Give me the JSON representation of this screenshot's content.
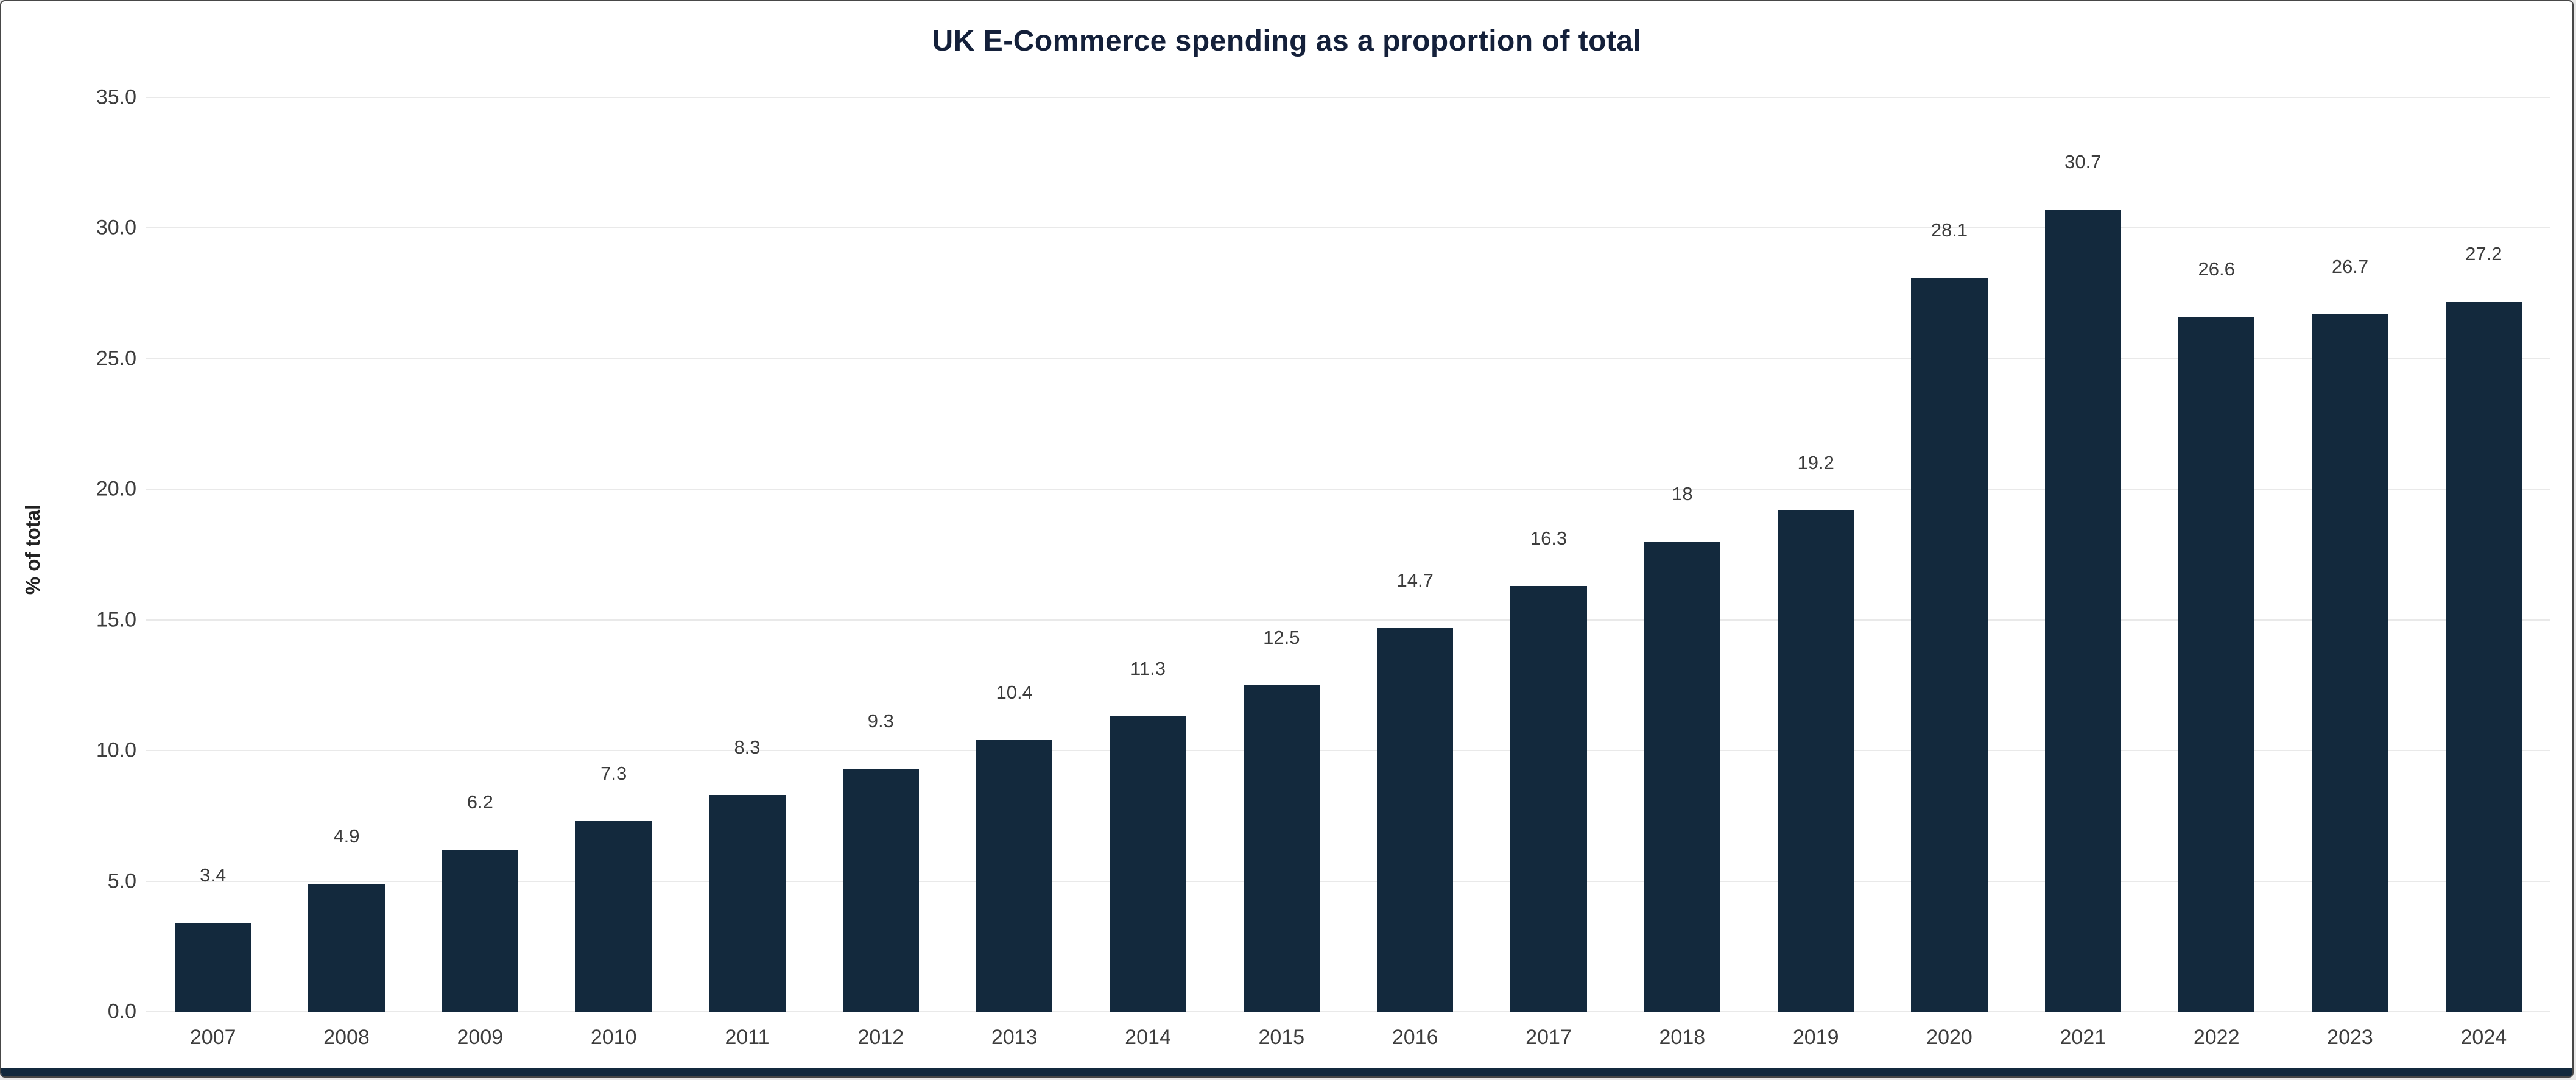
{
  "chart_data": {
    "type": "bar",
    "title": "UK E-Commerce spending as a proportion of total",
    "xlabel": "",
    "ylabel": "% of total",
    "categories": [
      "2007",
      "2008",
      "2009",
      "2010",
      "2011",
      "2012",
      "2013",
      "2014",
      "2015",
      "2016",
      "2017",
      "2018",
      "2019",
      "2020",
      "2021",
      "2022",
      "2023",
      "2024"
    ],
    "values": [
      3.4,
      4.9,
      6.2,
      7.3,
      8.3,
      9.3,
      10.4,
      11.3,
      12.5,
      14.7,
      16.3,
      18,
      19.2,
      28.1,
      30.7,
      26.6,
      26.7,
      27.2
    ],
    "value_labels": [
      "3.4",
      "4.9",
      "6.2",
      "7.3",
      "8.3",
      "9.3",
      "10.4",
      "11.3",
      "12.5",
      "14.7",
      "16.3",
      "18",
      "19.2",
      "28.1",
      "30.7",
      "26.6",
      "26.7",
      "27.2"
    ],
    "ylim": [
      0,
      35
    ],
    "ytick_step": 5,
    "ytick_labels": [
      "0.0",
      "5.0",
      "10.0",
      "15.0",
      "20.0",
      "25.0",
      "30.0",
      "35.0"
    ],
    "grid": true,
    "legend_position": "none",
    "colors": {
      "bar": "#13293d",
      "grid": "#e9e9e9",
      "title": "#14203a",
      "tick_label": "#3d3d3d",
      "value_label": "#3d3d3d",
      "background": "#ffffff",
      "bottom_strip": "#13293d"
    }
  }
}
